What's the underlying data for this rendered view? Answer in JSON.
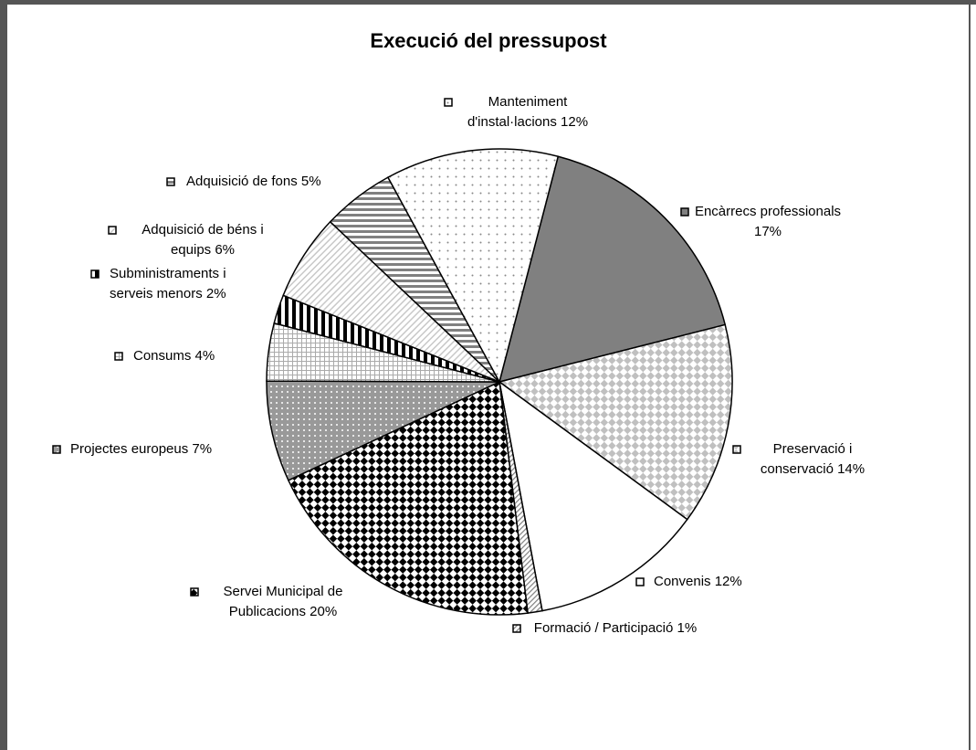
{
  "chart_data": {
    "type": "pie",
    "title": "Execució del pressupost",
    "categories": [
      "Encàrrecs professionals",
      "Preservació i conservació",
      "Convenis",
      "Formació / Participació",
      "Servei Municipal de Publicacions",
      "Projectes europeus",
      "Consums",
      "Subministraments i serveis menors",
      "Adquisició de béns i equips",
      "Adquisició de fons",
      "Manteniment d'instal·lacions"
    ],
    "values": [
      17,
      14,
      12,
      1,
      20,
      7,
      4,
      2,
      6,
      5,
      12
    ],
    "value_labels": [
      "17%",
      "14%",
      "12%",
      "1%",
      "20%",
      "7%",
      "4%",
      "2%",
      "6%",
      "5%",
      "12%"
    ],
    "colors": [
      "#808080",
      "#c0c0c0",
      "#ffffff",
      "#808080",
      "#000000",
      "#999999",
      "#aaaaaa",
      "#000000",
      "#c8c8c8",
      "#808080",
      "#888888"
    ],
    "patterns": [
      "solid",
      "diamond",
      "solid",
      "hatch",
      "diamond",
      "dots-on",
      "grid",
      "vstripes",
      "diag",
      "hstripes",
      "dots"
    ]
  }
}
